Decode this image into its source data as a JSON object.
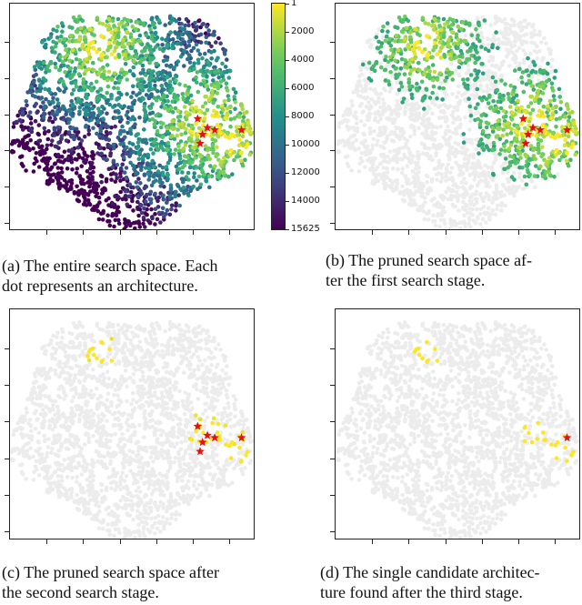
{
  "chart_data": [
    {
      "type": "scatter",
      "panel": "a",
      "caption_lines": [
        "(a) The entire search space. Each",
        "dot represents an architecture."
      ],
      "visible_fraction": 1.0,
      "star_count": 6,
      "colorbar": {
        "ticks": [
          "1",
          "2000",
          "4000",
          "6000",
          "8000",
          "10000",
          "12000",
          "14000",
          "15625"
        ],
        "colormap": "viridis-reversed"
      }
    },
    {
      "type": "scatter",
      "panel": "b",
      "caption_lines": [
        "(b) The pruned search space af-",
        "ter the first search stage."
      ],
      "visible_fraction": 0.45,
      "star_count": 6
    },
    {
      "type": "scatter",
      "panel": "c",
      "caption_lines": [
        "(c) The pruned search space after",
        "the second search stage."
      ],
      "visible_fraction": 0.04,
      "star_count": 6
    },
    {
      "type": "scatter",
      "panel": "d",
      "caption_lines": [
        "(d) The single candidate architec-",
        "ture found after the third stage."
      ],
      "visible_fraction": 0.0,
      "star_count": 1
    }
  ],
  "colors": {
    "background_dots": "#ececec",
    "star": "#e8120c",
    "axis": "#222222"
  }
}
